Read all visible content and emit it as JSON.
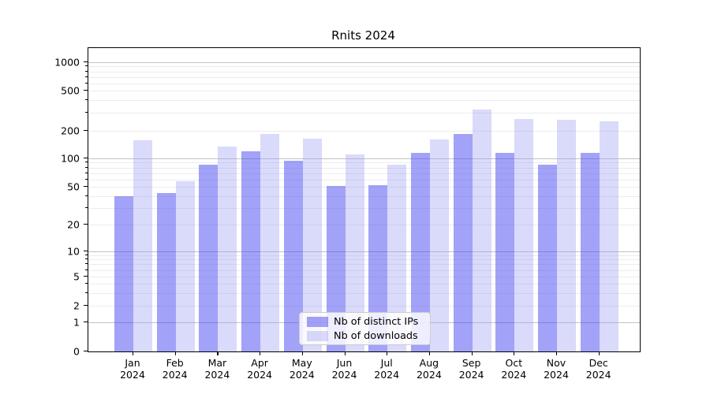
{
  "figure": {
    "background": "#ffffff",
    "text_color": "#000000"
  },
  "chart_data": {
    "type": "bar",
    "title": "Rnits 2024",
    "categories": [
      "Jan 2024",
      "Feb 2024",
      "Mar 2024",
      "Apr 2024",
      "May 2024",
      "Jun 2024",
      "Jul 2024",
      "Aug 2024",
      "Sep 2024",
      "Oct 2024",
      "Nov 2024",
      "Dec 2024"
    ],
    "series": [
      {
        "name": "Nb of distinct IPs",
        "color": "rgba(70,70,242,0.5)",
        "color_hex": "#a4a4f8",
        "values": [
          40,
          43,
          85,
          120,
          95,
          51,
          52,
          115,
          185,
          116,
          85,
          115
        ]
      },
      {
        "name": "Nb of downloads",
        "color": "rgba(150,150,240,0.35)",
        "color_hex": "#dadafa",
        "values": [
          158,
          57,
          135,
          185,
          165,
          110,
          86,
          162,
          325,
          260,
          255,
          250
        ]
      }
    ],
    "xlabel": "",
    "ylabel": "",
    "yscale": "symlog",
    "ylim": [
      0,
      1400
    ],
    "yticks": [
      0,
      1,
      2,
      5,
      10,
      20,
      50,
      100,
      200,
      500,
      1000
    ],
    "grid": true,
    "grid_major_color": "#c3c3c3",
    "grid_minor_color": "#ececec",
    "legend_position": "lower center"
  }
}
